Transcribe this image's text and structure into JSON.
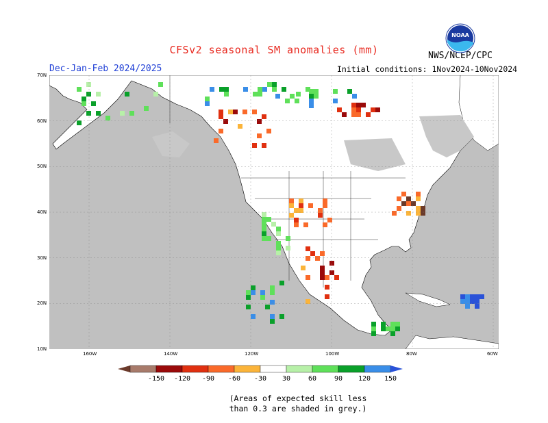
{
  "header": {
    "title": "CFSv2 seasonal SM anomalies (mm)",
    "org": "NWS/NCEP/CPC",
    "period": "Dec-Jan-Feb 2024/2025",
    "init": "Initial conditions: 1Nov2024-10Nov2024",
    "logo_text": "NOAA"
  },
  "map": {
    "lat_labels": [
      "70N",
      "60N",
      "50N",
      "40N",
      "30N",
      "20N",
      "10N"
    ],
    "lon_labels": [
      "160W",
      "140W",
      "120W",
      "100W",
      "80W",
      "60W"
    ],
    "ocean_color": "#c0c0c0",
    "land_color": "#ffffff"
  },
  "colorbar": {
    "levels": [
      "-150",
      "-120",
      "-90",
      "-60",
      "-30",
      "30",
      "60",
      "90",
      "120",
      "150"
    ],
    "colors": [
      "#6b3a2a",
      "#a87b6b",
      "#9a0a0a",
      "#e03010",
      "#fa6a2a",
      "#fbb43a",
      "#ffffff",
      "#b7f0a8",
      "#5fe05a",
      "#0aa02a",
      "#3a8ee8",
      "#2a52d8"
    ]
  },
  "note": {
    "line1": "(Areas of expected skill less",
    "line2": "than 0.3 are shaded in grey.)"
  }
}
